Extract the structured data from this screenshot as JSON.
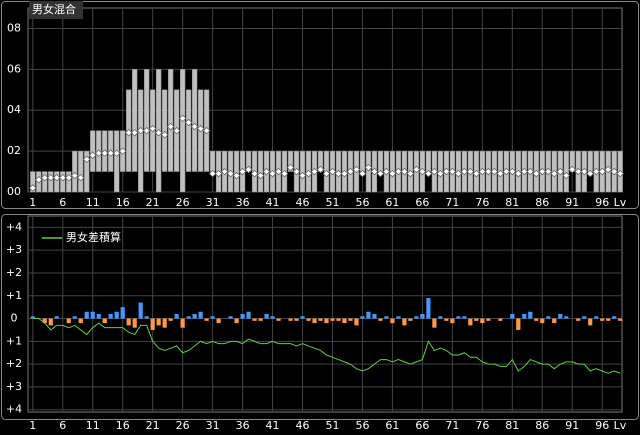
{
  "chart_data": [
    {
      "type": "range-bar",
      "title": "男女混合",
      "xlabel": "Lv",
      "x": [
        1,
        2,
        3,
        4,
        5,
        6,
        7,
        8,
        9,
        10,
        11,
        12,
        13,
        14,
        15,
        16,
        17,
        18,
        19,
        20,
        21,
        22,
        23,
        24,
        25,
        26,
        27,
        28,
        29,
        30,
        31,
        32,
        33,
        34,
        35,
        36,
        37,
        38,
        39,
        40,
        41,
        42,
        43,
        44,
        45,
        46,
        47,
        48,
        49,
        50,
        51,
        52,
        53,
        54,
        55,
        56,
        57,
        58,
        59,
        60,
        61,
        62,
        63,
        64,
        65,
        66,
        67,
        68,
        69,
        70,
        71,
        72,
        73,
        74,
        75,
        76,
        77,
        78,
        79,
        80,
        81,
        82,
        83,
        84,
        85,
        86,
        87,
        88,
        89,
        90,
        91,
        92,
        93,
        94,
        95,
        96,
        97,
        98,
        99
      ],
      "ranges": [
        [
          0,
          1
        ],
        [
          0,
          1
        ],
        [
          0,
          1
        ],
        [
          0,
          1
        ],
        [
          0,
          1
        ],
        [
          0,
          1
        ],
        [
          0,
          1
        ],
        [
          0,
          2
        ],
        [
          0,
          2
        ],
        [
          0,
          2
        ],
        [
          1,
          3
        ],
        [
          1,
          3
        ],
        [
          1,
          3
        ],
        [
          1,
          3
        ],
        [
          0,
          3
        ],
        [
          1,
          3
        ],
        [
          1,
          5
        ],
        [
          1,
          6
        ],
        [
          0,
          5
        ],
        [
          1,
          6
        ],
        [
          1,
          5
        ],
        [
          0,
          6
        ],
        [
          1,
          5
        ],
        [
          1,
          6
        ],
        [
          1,
          5
        ],
        [
          0,
          6
        ],
        [
          1,
          5
        ],
        [
          1,
          6
        ],
        [
          1,
          5
        ],
        [
          1,
          5
        ],
        [
          1,
          2
        ],
        [
          0,
          2
        ],
        [
          0,
          2
        ],
        [
          0,
          2
        ],
        [
          0,
          2
        ],
        [
          0,
          2
        ],
        [
          1,
          2
        ],
        [
          0,
          2
        ],
        [
          0,
          2
        ],
        [
          0,
          2
        ],
        [
          0,
          2
        ],
        [
          0,
          2
        ],
        [
          0,
          2
        ],
        [
          1,
          2
        ],
        [
          0,
          2
        ],
        [
          0,
          2
        ],
        [
          0,
          2
        ],
        [
          0,
          2
        ],
        [
          1,
          2
        ],
        [
          0,
          2
        ],
        [
          0,
          2
        ],
        [
          0,
          2
        ],
        [
          0,
          2
        ],
        [
          0,
          2
        ],
        [
          0,
          2
        ],
        [
          1,
          2
        ],
        [
          0,
          2
        ],
        [
          0,
          2
        ],
        [
          1,
          2
        ],
        [
          0,
          2
        ],
        [
          0,
          2
        ],
        [
          0,
          2
        ],
        [
          0,
          2
        ],
        [
          0,
          2
        ],
        [
          0,
          2
        ],
        [
          0,
          2
        ],
        [
          1,
          2
        ],
        [
          0,
          2
        ],
        [
          0,
          2
        ],
        [
          0,
          2
        ],
        [
          0,
          2
        ],
        [
          0,
          2
        ],
        [
          0,
          2
        ],
        [
          0,
          2
        ],
        [
          0,
          2
        ],
        [
          0,
          2
        ],
        [
          0,
          2
        ],
        [
          0,
          2
        ],
        [
          0,
          2
        ],
        [
          0,
          2
        ],
        [
          0,
          2
        ],
        [
          0,
          2
        ],
        [
          0,
          2
        ],
        [
          0,
          2
        ],
        [
          0,
          2
        ],
        [
          0,
          2
        ],
        [
          0,
          2
        ],
        [
          0,
          2
        ],
        [
          0,
          2
        ],
        [
          0,
          2
        ],
        [
          1,
          2
        ],
        [
          0,
          2
        ],
        [
          0,
          2
        ],
        [
          1,
          2
        ],
        [
          0,
          2
        ],
        [
          0,
          2
        ],
        [
          0,
          2
        ],
        [
          0,
          2
        ],
        [
          0,
          2
        ]
      ],
      "values": [
        0.2,
        0.6,
        0.7,
        0.7,
        0.7,
        0.7,
        0.7,
        0.8,
        0.7,
        1.6,
        1.8,
        1.9,
        1.9,
        1.9,
        1.9,
        2.0,
        2.9,
        2.9,
        3.0,
        3.0,
        3.1,
        2.9,
        2.8,
        3.2,
        3.0,
        3.6,
        3.4,
        3.2,
        3.1,
        3.0,
        0.9,
        0.9,
        1.0,
        0.9,
        0.8,
        1.0,
        1.1,
        0.9,
        0.8,
        1.0,
        0.9,
        1.0,
        0.9,
        1.2,
        1.0,
        0.8,
        0.9,
        1.0,
        1.1,
        0.9,
        1.0,
        0.9,
        0.9,
        1.0,
        1.1,
        0.9,
        1.2,
        1.0,
        0.9,
        1.0,
        0.9,
        1.0,
        1.0,
        0.9,
        1.1,
        1.0,
        0.9,
        1.0,
        0.9,
        1.0,
        1.0,
        0.9,
        1.0,
        1.0,
        0.9,
        1.0,
        1.0,
        1.0,
        0.9,
        1.0,
        1.0,
        0.9,
        1.0,
        1.0,
        0.9,
        1.0,
        1.0,
        0.9,
        1.0,
        0.8,
        1.1,
        1.0,
        1.0,
        0.9,
        1.0,
        1.0,
        1.1,
        1.0,
        0.9
      ],
      "bar_color": "#c0c0c0",
      "gap_color": "#000000",
      "point_color": "#ffffff",
      "xlim": [
        0.2,
        99.3
      ],
      "xticks": [
        1,
        6,
        11,
        16,
        21,
        26,
        31,
        36,
        41,
        46,
        51,
        56,
        61,
        66,
        71,
        76,
        81,
        86,
        91,
        96
      ],
      "ylim": [
        0,
        9
      ],
      "yticks": [
        {
          "value": 0,
          "label": "00"
        },
        {
          "value": 2,
          "label": "02"
        },
        {
          "value": 4,
          "label": "04"
        },
        {
          "value": 6,
          "label": "06"
        },
        {
          "value": 8,
          "label": "08"
        }
      ],
      "grid": true
    },
    {
      "type": "diff",
      "xlabel": "Lv",
      "x": [
        1,
        2,
        3,
        4,
        5,
        6,
        7,
        8,
        9,
        10,
        11,
        12,
        13,
        14,
        15,
        16,
        17,
        18,
        19,
        20,
        21,
        22,
        23,
        24,
        25,
        26,
        27,
        28,
        29,
        30,
        31,
        32,
        33,
        34,
        35,
        36,
        37,
        38,
        39,
        40,
        41,
        42,
        43,
        44,
        45,
        46,
        47,
        48,
        49,
        50,
        51,
        52,
        53,
        54,
        55,
        56,
        57,
        58,
        59,
        60,
        61,
        62,
        63,
        64,
        65,
        66,
        67,
        68,
        69,
        70,
        71,
        72,
        73,
        74,
        75,
        76,
        77,
        78,
        79,
        80,
        81,
        82,
        83,
        84,
        85,
        86,
        87,
        88,
        89,
        90,
        91,
        92,
        93,
        94,
        95,
        96,
        97,
        98,
        99
      ],
      "values": [
        0.1,
        0,
        -0.2,
        -0.3,
        0.1,
        0,
        -0.2,
        0.1,
        -0.2,
        0.3,
        0.3,
        0.2,
        -0.2,
        0.2,
        0.3,
        0.5,
        -0.3,
        -0.4,
        0.7,
        0.1,
        -0.5,
        -0.3,
        -0.4,
        -0.1,
        0.2,
        -0.4,
        0.1,
        0.2,
        0.3,
        -0.1,
        0.1,
        -0.2,
        0,
        0.1,
        -0.2,
        0.2,
        0.3,
        -0.1,
        -0.1,
        0.2,
        0.1,
        -0.1,
        0,
        -0.1,
        -0.1,
        0.1,
        -0.1,
        -0.2,
        -0.1,
        -0.2,
        -0.1,
        -0.1,
        -0.2,
        -0.1,
        -0.3,
        0.1,
        0.3,
        0.2,
        -0.1,
        0.1,
        -0.2,
        0.1,
        -0.3,
        -0.1,
        0.1,
        0.2,
        0.9,
        -0.4,
        0.1,
        -0.1,
        -0.2,
        0.1,
        0.1,
        -0.3,
        -0.1,
        -0.2,
        -0.1,
        0,
        -0.1,
        0,
        0.2,
        -0.5,
        0.2,
        0.3,
        -0.1,
        -0.2,
        0.1,
        -0.2,
        0.2,
        0.1,
        0,
        -0.1,
        0.1,
        -0.3,
        0.1,
        -0.1,
        -0.1,
        0.1,
        -0.1
      ],
      "pos_color": "#4499ff",
      "neg_color": "#ff9944",
      "series": [
        {
          "name": "男女差積算",
          "color": "#66cc44",
          "values": [
            0,
            0,
            -0.2,
            -0.5,
            -0.3,
            -0.3,
            -0.4,
            -0.3,
            -0.5,
            -0.7,
            -0.4,
            -0.2,
            -0.4,
            -0.4,
            -0.4,
            -0.4,
            -0.6,
            -0.7,
            -0.3,
            -0.3,
            -1.0,
            -1.3,
            -1.4,
            -1.3,
            -1.2,
            -1.5,
            -1.4,
            -1.2,
            -1.0,
            -1.1,
            -1.0,
            -1.1,
            -1.1,
            -1.0,
            -1.0,
            -1.1,
            -0.9,
            -1.0,
            -1.1,
            -1.1,
            -1.0,
            -1.1,
            -1.1,
            -1.1,
            -1.2,
            -1.1,
            -1.2,
            -1.3,
            -1.4,
            -1.6,
            -1.7,
            -1.8,
            -1.9,
            -2.0,
            -2.2,
            -2.3,
            -2.2,
            -2.0,
            -1.8,
            -1.8,
            -1.9,
            -1.8,
            -1.9,
            -2.0,
            -1.9,
            -1.8,
            -1.0,
            -1.4,
            -1.3,
            -1.4,
            -1.6,
            -1.6,
            -1.5,
            -1.7,
            -1.7,
            -1.9,
            -2.0,
            -2.0,
            -2.1,
            -2.1,
            -1.8,
            -2.3,
            -2.1,
            -1.8,
            -1.9,
            -2.0,
            -2.0,
            -2.2,
            -2.0,
            -1.9,
            -1.9,
            -2.0,
            -2.0,
            -2.3,
            -2.2,
            -2.3,
            -2.4,
            -2.3,
            -2.4
          ]
        }
      ],
      "xlim": [
        0.2,
        99.3
      ],
      "xticks": [
        1,
        6,
        11,
        16,
        21,
        26,
        31,
        36,
        41,
        46,
        51,
        56,
        61,
        66,
        71,
        76,
        81,
        86,
        91,
        96
      ],
      "ylim": [
        -4.1,
        4.5
      ],
      "yticks": [
        {
          "value": 4,
          "label": "+4"
        },
        {
          "value": 3,
          "label": "+3"
        },
        {
          "value": 2,
          "label": "+2"
        },
        {
          "value": 1,
          "label": "+1"
        },
        0,
        {
          "value": -1,
          "label": "+1"
        },
        {
          "value": -2,
          "label": "+2"
        },
        {
          "value": -3,
          "label": "+3"
        },
        {
          "value": -4,
          "label": "+4"
        }
      ],
      "negative_tick_color": "#ffff55",
      "grid": true
    }
  ]
}
